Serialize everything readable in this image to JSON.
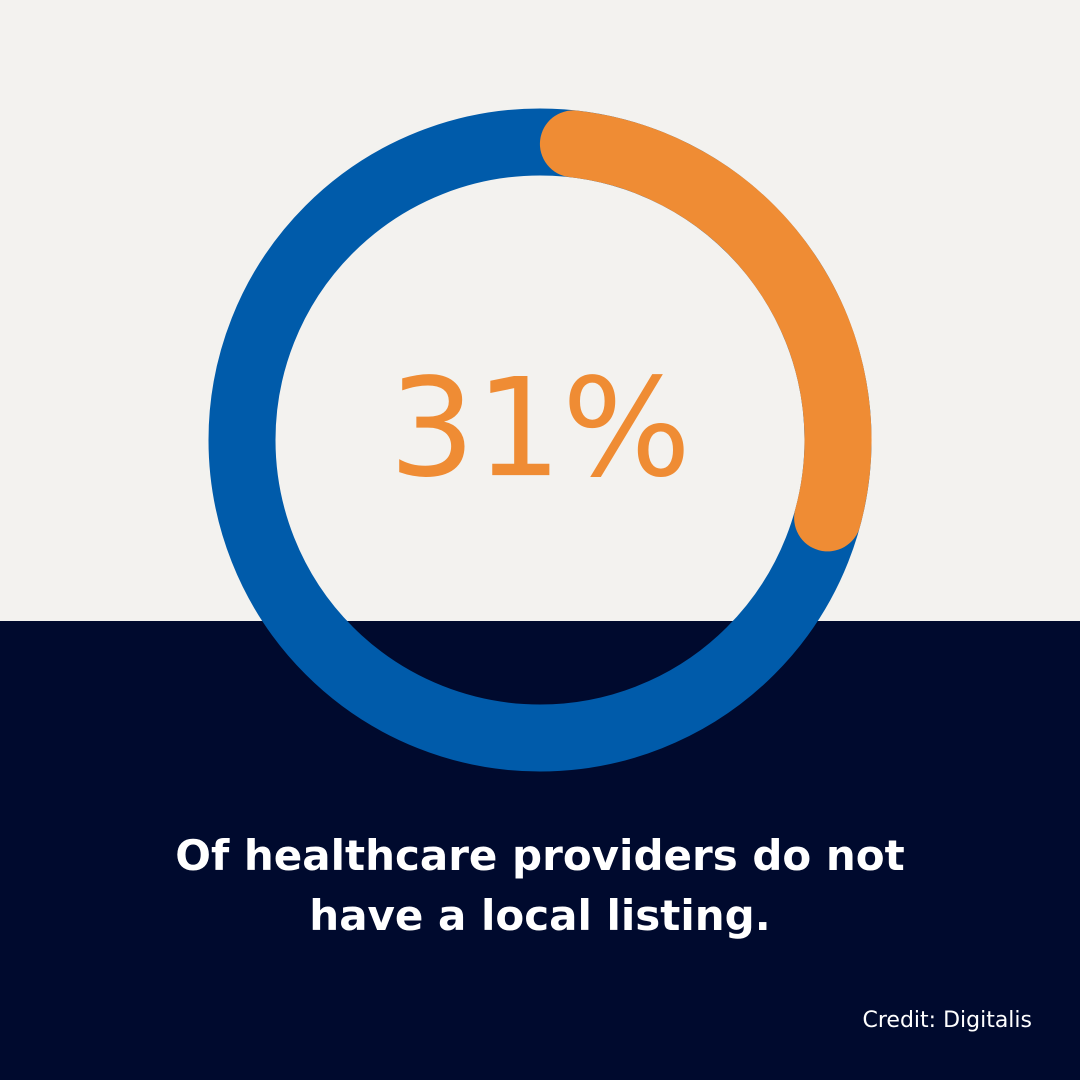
{
  "chart_data": {
    "type": "donut",
    "values": [
      31
    ],
    "value_labels": [
      "31%"
    ],
    "ylim": [
      0,
      100
    ],
    "color": "#ef8c34",
    "track_color": "#005baa",
    "caption": "Of healthcare providers do not have a local listing.",
    "credit": "Credit: Digitalis"
  }
}
